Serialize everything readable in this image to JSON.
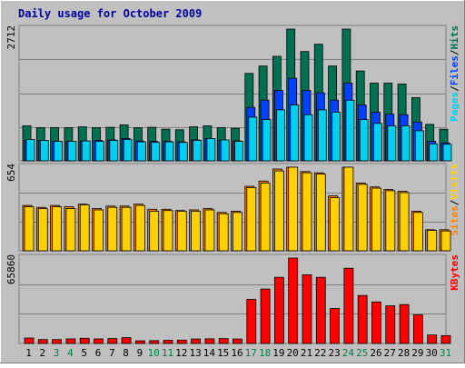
{
  "chart_data": [
    {
      "type": "bar",
      "title": "Daily usage for October 2009",
      "ylabel_max": "2712",
      "ylim": [
        0,
        2712
      ],
      "categories": [
        "1",
        "2",
        "3",
        "4",
        "5",
        "6",
        "7",
        "8",
        "9",
        "10",
        "11",
        "12",
        "13",
        "14",
        "15",
        "16",
        "17",
        "18",
        "19",
        "20",
        "21",
        "22",
        "23",
        "24",
        "25",
        "26",
        "27",
        "28",
        "29",
        "30",
        "31"
      ],
      "weekend_days": [
        "3",
        "4",
        "10",
        "11",
        "17",
        "18",
        "24",
        "25",
        "31"
      ],
      "legend": [
        {
          "label": "Pages",
          "color": "#00d0f0"
        },
        {
          "label": "/",
          "color": "#000000"
        },
        {
          "label": "Files",
          "color": "#0040ff"
        },
        {
          "label": "/",
          "color": "#000000"
        },
        {
          "label": "Hits",
          "color": "#007050"
        }
      ],
      "series": [
        {
          "name": "Hits",
          "color": "#007050",
          "values": [
            720,
            680,
            680,
            680,
            700,
            680,
            690,
            740,
            680,
            690,
            650,
            640,
            700,
            720,
            680,
            670,
            1800,
            1950,
            2150,
            2712,
            2250,
            2400,
            1950,
            2712,
            1850,
            1600,
            1600,
            1580,
            1300,
            750,
            650
          ]
        },
        {
          "name": "Files",
          "color": "#0040ff",
          "values": [
            420,
            420,
            400,
            400,
            410,
            420,
            430,
            460,
            410,
            400,
            400,
            390,
            430,
            460,
            420,
            410,
            1100,
            1250,
            1450,
            1700,
            1450,
            1400,
            1250,
            1600,
            1150,
            1000,
            960,
            950,
            800,
            400,
            370
          ]
        },
        {
          "name": "Pages",
          "color": "#00d0f0",
          "values": [
            440,
            420,
            400,
            400,
            410,
            400,
            420,
            440,
            390,
            380,
            390,
            380,
            420,
            460,
            430,
            400,
            900,
            850,
            1050,
            1150,
            950,
            1050,
            1000,
            1250,
            850,
            770,
            720,
            720,
            620,
            350,
            340
          ]
        }
      ]
    },
    {
      "type": "bar",
      "ylabel_max": "654",
      "ylim": [
        0,
        654
      ],
      "categories": [
        "1",
        "2",
        "3",
        "4",
        "5",
        "6",
        "7",
        "8",
        "9",
        "10",
        "11",
        "12",
        "13",
        "14",
        "15",
        "16",
        "17",
        "18",
        "19",
        "20",
        "21",
        "22",
        "23",
        "24",
        "25",
        "26",
        "27",
        "28",
        "29",
        "30",
        "31"
      ],
      "legend": [
        {
          "label": "Sites",
          "color": "#ff8000"
        },
        {
          "label": "/",
          "color": "#000000"
        },
        {
          "label": "Visits",
          "color": "#ffd000"
        }
      ],
      "series": [
        {
          "name": "Visits",
          "color": "#ffd000",
          "values": [
            345,
            330,
            345,
            330,
            360,
            320,
            340,
            340,
            355,
            310,
            315,
            310,
            310,
            320,
            290,
            300,
            495,
            530,
            625,
            654,
            610,
            600,
            415,
            654,
            520,
            490,
            470,
            455,
            300,
            160,
            155
          ]
        },
        {
          "name": "Sites",
          "color": "#ff8000",
          "values": [
            355,
            340,
            355,
            345,
            365,
            330,
            350,
            350,
            365,
            325,
            325,
            315,
            320,
            330,
            300,
            310,
            505,
            545,
            640,
            654,
            620,
            610,
            430,
            654,
            530,
            500,
            480,
            465,
            310,
            165,
            165
          ]
        }
      ]
    },
    {
      "type": "bar",
      "ylabel_max": "65860",
      "ylim": [
        0,
        65860
      ],
      "categories": [
        "1",
        "2",
        "3",
        "4",
        "5",
        "6",
        "7",
        "8",
        "9",
        "10",
        "11",
        "12",
        "13",
        "14",
        "15",
        "16",
        "17",
        "18",
        "19",
        "20",
        "21",
        "22",
        "23",
        "24",
        "25",
        "26",
        "27",
        "28",
        "29",
        "30",
        "31"
      ],
      "legend": [
        {
          "label": "KBytes",
          "color": "#ff0000"
        }
      ],
      "series": [
        {
          "name": "KBytes",
          "color": "#ff0000",
          "values": [
            4200,
            3000,
            3000,
            3500,
            4000,
            3500,
            3800,
            4500,
            2000,
            2200,
            2400,
            2600,
            3400,
            3600,
            3800,
            3400,
            34000,
            42000,
            51000,
            65860,
            53000,
            51000,
            27000,
            58000,
            37000,
            32000,
            29000,
            30000,
            22000,
            6500,
            6000
          ]
        }
      ]
    }
  ]
}
